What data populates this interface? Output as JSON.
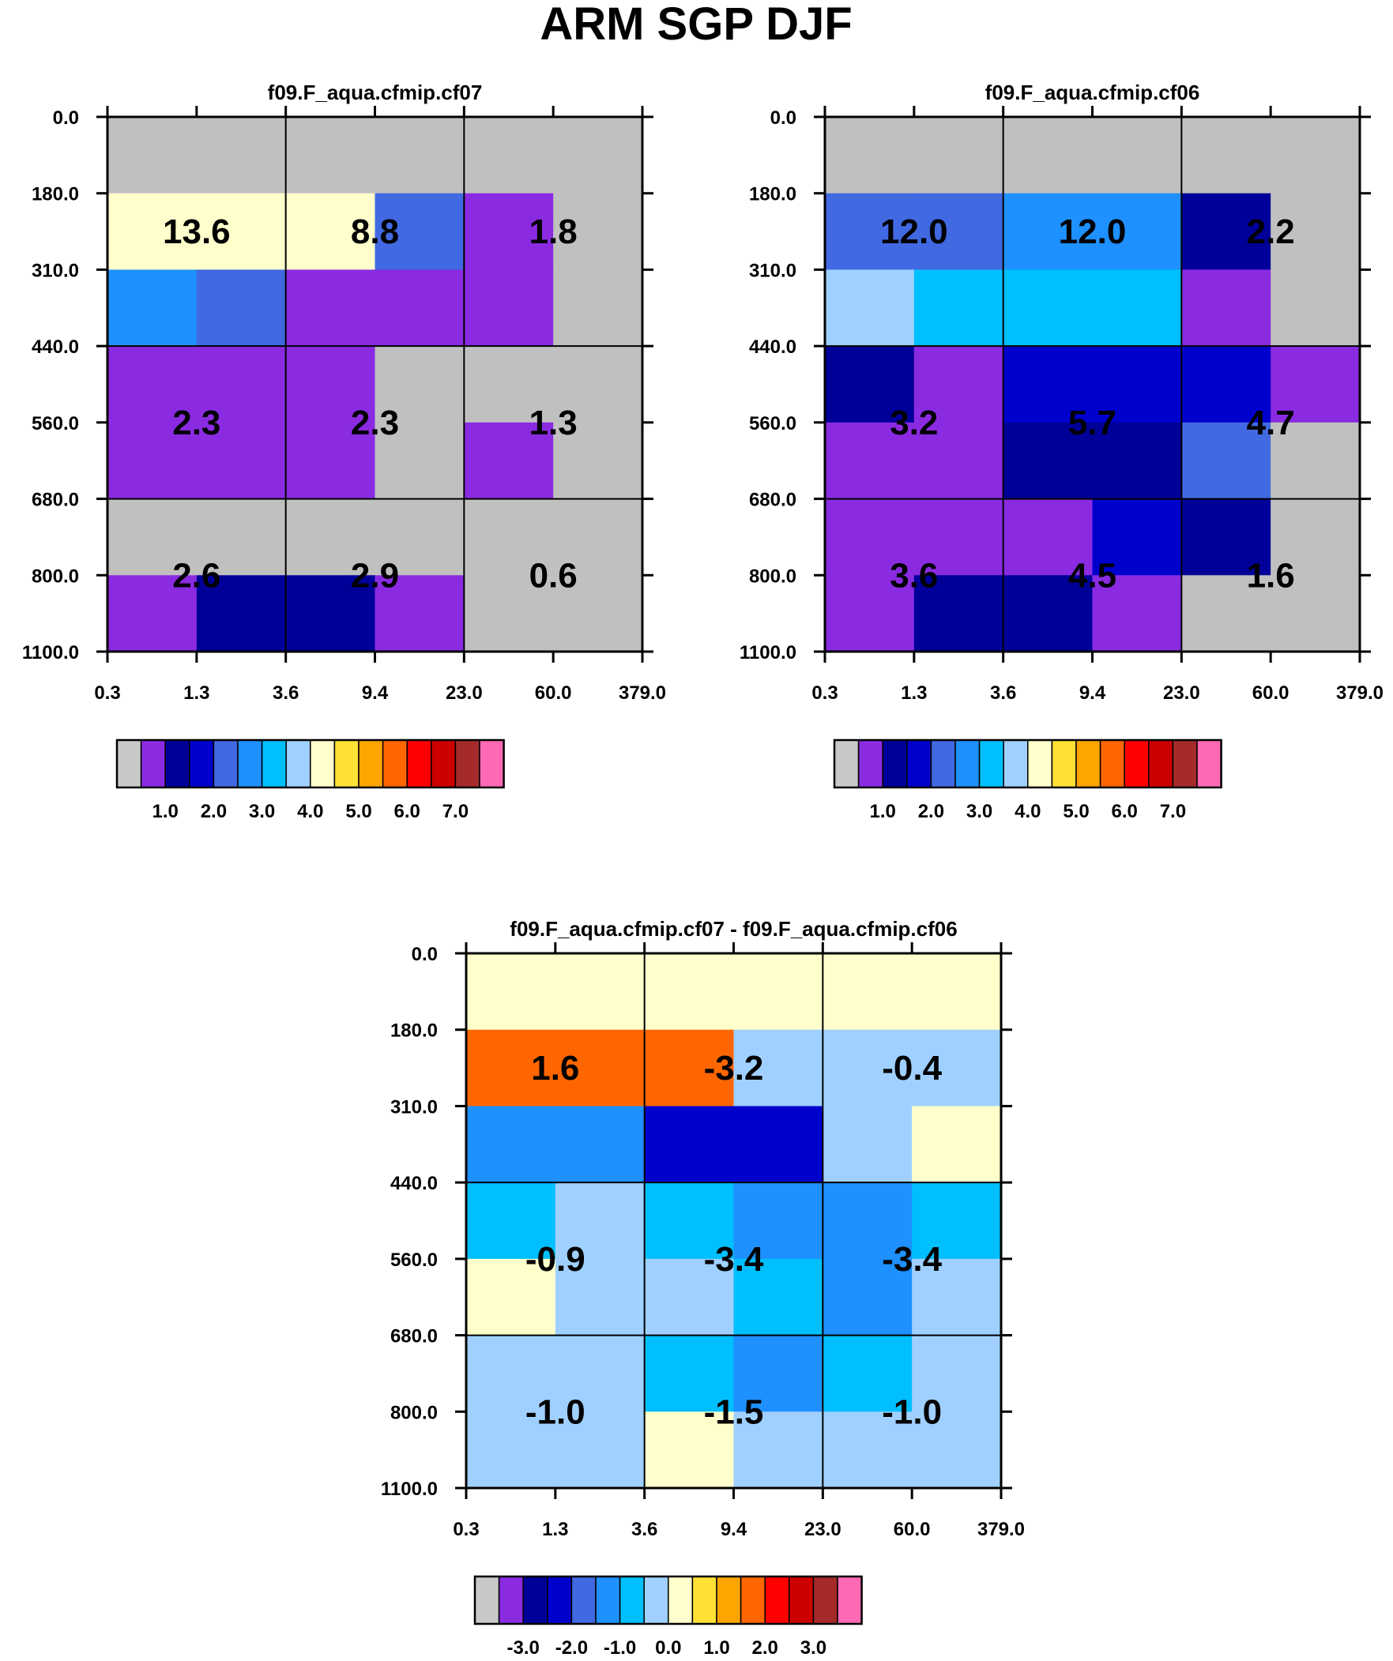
{
  "figure_title": "ARM SGP DJF",
  "chart_data": [
    {
      "type": "heatmap",
      "title": "f09.F_aqua.cfmip.cf07",
      "x_ticks": [
        "0.3",
        "1.3",
        "3.6",
        "9.4",
        "23.0",
        "60.0",
        "379.0"
      ],
      "y_ticks": [
        "0.0",
        "180.0",
        "310.0",
        "440.0",
        "560.0",
        "680.0",
        "800.0",
        "1100.0"
      ],
      "cell_colors": [
        [
          "#C0C0C0",
          "#C0C0C0",
          "#C0C0C0",
          "#C0C0C0",
          "#C0C0C0",
          "#C0C0C0"
        ],
        [
          "#FFFFCC",
          "#FFFFCC",
          "#FFFFCC",
          "#4169E1",
          "#8A2BE2",
          "#C0C0C0"
        ],
        [
          "#1E90FF",
          "#4169E1",
          "#8A2BE2",
          "#8A2BE2",
          "#8A2BE2",
          "#C0C0C0"
        ],
        [
          "#8A2BE2",
          "#8A2BE2",
          "#8A2BE2",
          "#C0C0C0",
          "#C0C0C0",
          "#C0C0C0"
        ],
        [
          "#8A2BE2",
          "#8A2BE2",
          "#8A2BE2",
          "#C0C0C0",
          "#8A2BE2",
          "#C0C0C0"
        ],
        [
          "#C0C0C0",
          "#C0C0C0",
          "#C0C0C0",
          "#C0C0C0",
          "#C0C0C0",
          "#C0C0C0"
        ],
        [
          "#8A2BE2",
          "#000099",
          "#000099",
          "#8A2BE2",
          "#C0C0C0",
          "#C0C0C0"
        ]
      ],
      "box_values": [
        [
          "13.6",
          "8.8",
          "1.8"
        ],
        [
          "2.3",
          "2.3",
          "1.3"
        ],
        [
          "2.6",
          "2.9",
          "0.6"
        ]
      ],
      "legend": {
        "colors": [
          "#C8C8C8",
          "#8A2BE2",
          "#000099",
          "#0000CD",
          "#4169E1",
          "#1E90FF",
          "#00BFFF",
          "#A0D0FF",
          "#FFFFCC",
          "#FFE135",
          "#FFA500",
          "#FF6600",
          "#FF0000",
          "#CC0000",
          "#A52A2A",
          "#FF69B4"
        ],
        "labels": [
          "1.0",
          "2.0",
          "3.0",
          "4.0",
          "5.0",
          "6.0",
          "7.0"
        ]
      }
    },
    {
      "type": "heatmap",
      "title": "f09.F_aqua.cfmip.cf06",
      "x_ticks": [
        "0.3",
        "1.3",
        "3.6",
        "9.4",
        "23.0",
        "60.0",
        "379.0"
      ],
      "y_ticks": [
        "0.0",
        "180.0",
        "310.0",
        "440.0",
        "560.0",
        "680.0",
        "800.0",
        "1100.0"
      ],
      "cell_colors": [
        [
          "#C0C0C0",
          "#C0C0C0",
          "#C0C0C0",
          "#C0C0C0",
          "#C0C0C0",
          "#C0C0C0"
        ],
        [
          "#4169E1",
          "#4169E1",
          "#1E90FF",
          "#1E90FF",
          "#000099",
          "#C0C0C0"
        ],
        [
          "#A0D0FF",
          "#00BFFF",
          "#00BFFF",
          "#00BFFF",
          "#8A2BE2",
          "#C0C0C0"
        ],
        [
          "#000099",
          "#8A2BE2",
          "#0000CD",
          "#0000CD",
          "#0000CD",
          "#8A2BE2"
        ],
        [
          "#8A2BE2",
          "#8A2BE2",
          "#000099",
          "#000099",
          "#4169E1",
          "#C0C0C0"
        ],
        [
          "#8A2BE2",
          "#8A2BE2",
          "#8A2BE2",
          "#0000CD",
          "#000099",
          "#C0C0C0"
        ],
        [
          "#8A2BE2",
          "#000099",
          "#000099",
          "#8A2BE2",
          "#C0C0C0",
          "#C0C0C0"
        ]
      ],
      "box_values": [
        [
          "12.0",
          "12.0",
          "2.2"
        ],
        [
          "3.2",
          "5.7",
          "4.7"
        ],
        [
          "3.6",
          "4.5",
          "1.6"
        ]
      ],
      "legend": {
        "colors": [
          "#C8C8C8",
          "#8A2BE2",
          "#000099",
          "#0000CD",
          "#4169E1",
          "#1E90FF",
          "#00BFFF",
          "#A0D0FF",
          "#FFFFCC",
          "#FFE135",
          "#FFA500",
          "#FF6600",
          "#FF0000",
          "#CC0000",
          "#A52A2A",
          "#FF69B4"
        ],
        "labels": [
          "1.0",
          "2.0",
          "3.0",
          "4.0",
          "5.0",
          "6.0",
          "7.0"
        ]
      }
    },
    {
      "type": "heatmap",
      "title": "f09.F_aqua.cfmip.cf07 - f09.F_aqua.cfmip.cf06",
      "x_ticks": [
        "0.3",
        "1.3",
        "3.6",
        "9.4",
        "23.0",
        "60.0",
        "379.0"
      ],
      "y_ticks": [
        "0.0",
        "180.0",
        "310.0",
        "440.0",
        "560.0",
        "680.0",
        "800.0",
        "1100.0"
      ],
      "cell_colors": [
        [
          "#FFFFCC",
          "#FFFFCC",
          "#FFFFCC",
          "#FFFFCC",
          "#FFFFCC",
          "#FFFFCC"
        ],
        [
          "#FF6600",
          "#FF6600",
          "#FF6600",
          "#A0D0FF",
          "#A0D0FF",
          "#A0D0FF"
        ],
        [
          "#1E90FF",
          "#1E90FF",
          "#0000CD",
          "#0000CD",
          "#A0D0FF",
          "#FFFFCC"
        ],
        [
          "#00BFFF",
          "#A0D0FF",
          "#00BFFF",
          "#1E90FF",
          "#1E90FF",
          "#00BFFF"
        ],
        [
          "#FFFFCC",
          "#A0D0FF",
          "#A0D0FF",
          "#00BFFF",
          "#1E90FF",
          "#A0D0FF"
        ],
        [
          "#A0D0FF",
          "#A0D0FF",
          "#00BFFF",
          "#1E90FF",
          "#00BFFF",
          "#A0D0FF"
        ],
        [
          "#A0D0FF",
          "#A0D0FF",
          "#FFFFCC",
          "#A0D0FF",
          "#A0D0FF",
          "#A0D0FF"
        ]
      ],
      "box_values": [
        [
          "1.6",
          "-3.2",
          "-0.4"
        ],
        [
          "-0.9",
          "-3.4",
          "-3.4"
        ],
        [
          "-1.0",
          "-1.5",
          "-1.0"
        ]
      ],
      "legend": {
        "colors": [
          "#C8C8C8",
          "#8A2BE2",
          "#000099",
          "#0000CD",
          "#4169E1",
          "#1E90FF",
          "#00BFFF",
          "#A0D0FF",
          "#FFFFCC",
          "#FFE135",
          "#FFA500",
          "#FF6600",
          "#FF0000",
          "#CC0000",
          "#A52A2A",
          "#FF69B4"
        ],
        "labels": [
          "-3.0",
          "-2.0",
          "-1.0",
          "0.0",
          "1.0",
          "2.0",
          "3.0"
        ]
      }
    }
  ]
}
